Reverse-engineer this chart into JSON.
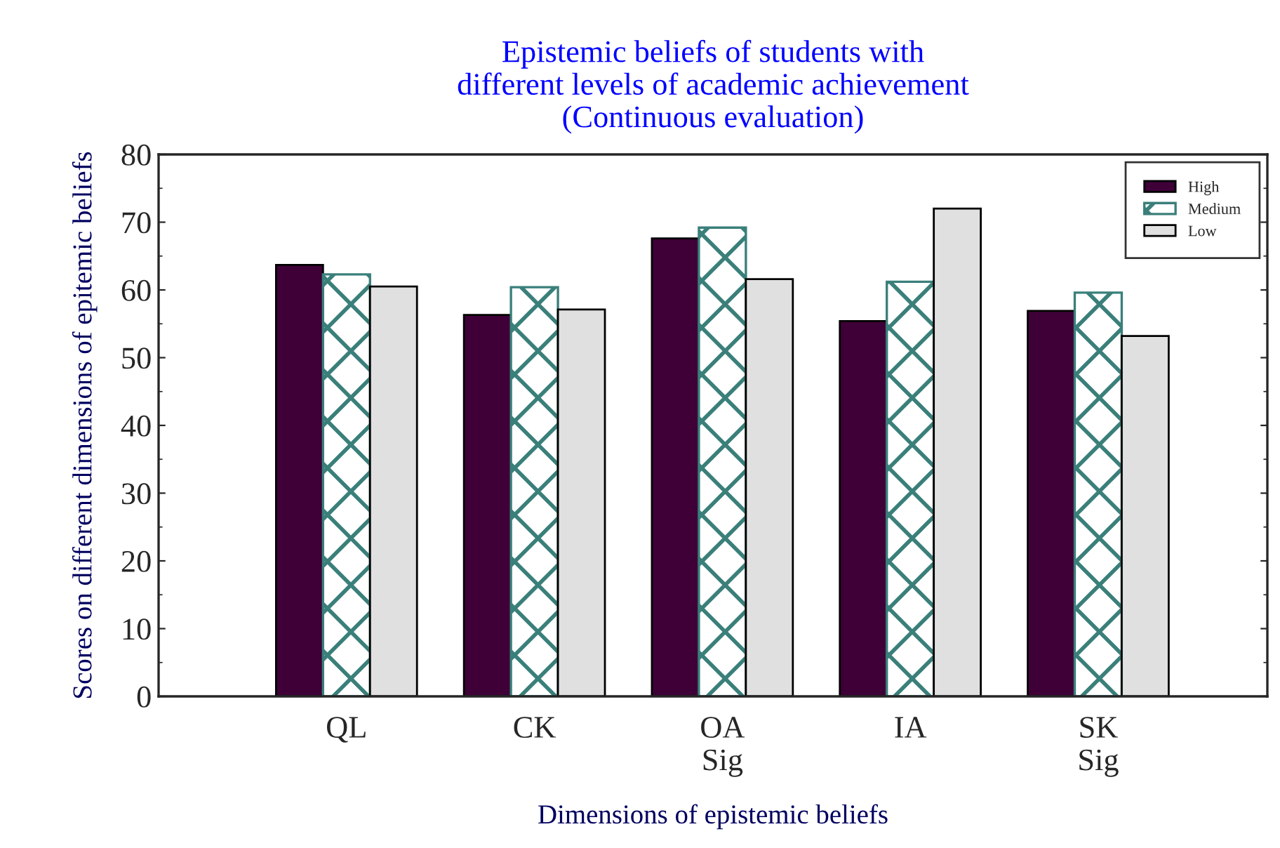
{
  "chart_data": {
    "type": "bar",
    "title": "Epistemic beliefs of students with\ndifferent levels of academic achievement\n(Continuous evaluation)",
    "xlabel": "Dimensions of epistemic beliefs",
    "ylabel": "Scores on different dimensions of epitemic beliefs",
    "categories": [
      "QL",
      "CK",
      "OA\nSig",
      "IA",
      "SK\nSig"
    ],
    "series": [
      {
        "name": "High",
        "color": "#3f0038",
        "values": [
          63.7,
          56.3,
          67.6,
          55.4,
          56.9
        ]
      },
      {
        "name": "Medium",
        "color": "#3a7f7a",
        "values": [
          62.3,
          60.4,
          69.2,
          61.2,
          59.6
        ]
      },
      {
        "name": "Low",
        "color": "#e0e0e0",
        "values": [
          60.5,
          57.1,
          61.6,
          72.0,
          53.2
        ]
      }
    ],
    "ylim": [
      0,
      80
    ],
    "yticks": [
      0,
      10,
      20,
      30,
      40,
      50,
      60,
      70,
      80
    ],
    "grid": false,
    "legend": "top right"
  }
}
